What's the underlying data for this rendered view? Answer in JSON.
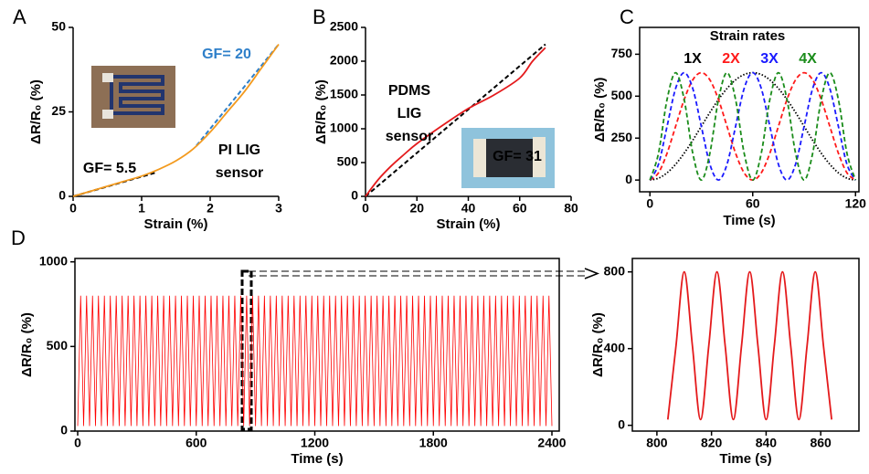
{
  "chart_data": [
    {
      "type": "line",
      "panel": "A",
      "xlabel": "Strain (%)",
      "ylabel": "ΔR/R₀ (%)",
      "xlim": [
        0,
        3
      ],
      "ylim": [
        0,
        50
      ],
      "xticks": [
        0,
        1,
        2,
        3
      ],
      "yticks": [
        0,
        25,
        50
      ],
      "series": [
        {
          "color": "#f39a1e",
          "x": [
            0,
            0.25,
            0.5,
            0.75,
            1,
            1.25,
            1.5,
            1.75,
            2,
            2.25,
            2.5,
            2.75,
            3
          ],
          "values": [
            0,
            1.5,
            3,
            4.5,
            6,
            8,
            10.5,
            14,
            19,
            25,
            31,
            38,
            45
          ]
        }
      ],
      "fits": [
        {
          "color": "#000000",
          "x": [
            0,
            1.2
          ],
          "values": [
            0,
            7
          ]
        },
        {
          "color": "#2e7fc9",
          "x": [
            1.8,
            3
          ],
          "values": [
            15,
            45
          ]
        }
      ],
      "annotations": [
        {
          "text": "GF= 20",
          "color": "#2e7fc9"
        },
        {
          "text": "GF= 5.5",
          "color": "#000000"
        },
        {
          "text": "PI LIG",
          "color": "#000000"
        },
        {
          "text": "sensor",
          "color": "#000000"
        }
      ]
    },
    {
      "type": "line",
      "panel": "B",
      "xlabel": "Strain (%)",
      "ylabel": "ΔR/R₀ (%)",
      "xlim": [
        0,
        80
      ],
      "ylim": [
        0,
        2500
      ],
      "xticks": [
        0,
        20,
        40,
        60,
        80
      ],
      "yticks": [
        0,
        500,
        1000,
        1500,
        2000,
        2500
      ],
      "series": [
        {
          "color": "#e41a1c",
          "x": [
            0,
            5,
            10,
            15,
            20,
            30,
            40,
            50,
            60,
            65,
            70
          ],
          "values": [
            0,
            250,
            450,
            620,
            780,
            1050,
            1300,
            1500,
            1750,
            2000,
            2200
          ]
        }
      ],
      "fits": [
        {
          "color": "#000000",
          "x": [
            0,
            70
          ],
          "values": [
            0,
            2250
          ]
        }
      ],
      "annotations": [
        {
          "text": "PDMS",
          "color": "#000000"
        },
        {
          "text": "LIG",
          "color": "#000000"
        },
        {
          "text": "sensor",
          "color": "#000000"
        },
        {
          "text": "GF= 31",
          "color": "#000000"
        }
      ]
    },
    {
      "type": "line",
      "panel": "C",
      "xlabel": "Time (s)",
      "ylabel": "ΔR/R₀ (%)",
      "legend_title": "Strain rates",
      "xlim": [
        -6,
        122
      ],
      "ylim": [
        -70,
        910
      ],
      "xticks": [
        0,
        60,
        120
      ],
      "yticks": [
        0,
        250,
        500,
        750
      ],
      "x": [
        0,
        5,
        10,
        15,
        20,
        25,
        30,
        35,
        40,
        45,
        50,
        55,
        60,
        65,
        70,
        75,
        80,
        85,
        90,
        95,
        100,
        105,
        110,
        115,
        120
      ],
      "series": [
        {
          "name": "1X",
          "color": "#000000",
          "dash": "1.5,2",
          "values": [
            0,
            11,
            43,
            94,
            160,
            237,
            320,
            403,
            480,
            546,
            597,
            629,
            640,
            629,
            597,
            546,
            480,
            403,
            320,
            237,
            160,
            94,
            43,
            11,
            0
          ]
        },
        {
          "name": "2X",
          "color": "#ff1a1a",
          "dash": "5,3",
          "values": [
            0,
            43,
            160,
            320,
            480,
            597,
            640,
            597,
            480,
            320,
            160,
            43,
            0,
            43,
            160,
            320,
            480,
            597,
            640,
            597,
            480,
            320,
            160,
            43,
            0
          ]
        },
        {
          "name": "3X",
          "color": "#1a1aff",
          "dash": "5,3",
          "values": [
            0,
            94,
            320,
            546,
            640,
            546,
            320,
            94,
            0,
            94,
            320,
            546,
            640,
            546,
            320,
            94,
            0,
            94,
            320,
            546,
            640,
            546,
            320,
            94,
            0
          ]
        },
        {
          "name": "4X",
          "color": "#1a8c1a",
          "dash": "5,3",
          "values": [
            0,
            160,
            480,
            640,
            480,
            160,
            0,
            160,
            480,
            640,
            480,
            160,
            0,
            160,
            480,
            640,
            480,
            160,
            0,
            160,
            480,
            640,
            480,
            160,
            0
          ]
        }
      ]
    },
    {
      "type": "line",
      "panel": "D",
      "xlabel": "Time (s)",
      "ylabel": "ΔR/R₀ (%)",
      "xlim": [
        -14,
        2437
      ],
      "ylim": [
        0,
        1020
      ],
      "xticks": [
        0,
        600,
        1200,
        1800,
        2400
      ],
      "yticks": [
        0,
        500,
        1000
      ],
      "x": [
        0,
        15,
        30,
        45,
        60,
        75,
        90,
        105,
        120,
        135,
        150,
        165,
        180,
        195,
        210,
        225,
        240,
        255,
        270,
        285,
        300,
        315,
        330,
        345,
        360,
        375,
        390,
        405,
        420,
        435,
        450,
        465,
        480,
        495,
        510,
        525,
        540,
        555,
        570,
        585,
        600,
        615,
        630,
        645,
        660,
        675,
        690,
        705,
        720,
        735,
        750,
        765,
        780,
        795,
        810,
        825,
        840,
        855,
        870,
        885,
        900,
        915,
        930,
        945,
        960,
        975,
        990,
        1005,
        1020,
        1035,
        1050,
        1065,
        1080,
        1095,
        1110,
        1125,
        1140,
        1155,
        1170,
        1185,
        1200,
        1215,
        1230,
        1245,
        1260,
        1275,
        1290,
        1305,
        1320,
        1335,
        1350,
        1365,
        1380,
        1395,
        1410,
        1425,
        1440,
        1455,
        1470,
        1485,
        1500,
        1515,
        1530,
        1545,
        1560,
        1575,
        1590,
        1605,
        1620,
        1635,
        1650,
        1665,
        1680,
        1695,
        1710,
        1725,
        1740,
        1755,
        1770,
        1785,
        1800,
        1815,
        1830,
        1845,
        1860,
        1875,
        1890,
        1905,
        1920,
        1935,
        1950,
        1965,
        1980,
        1995,
        2010,
        2025,
        2040,
        2055,
        2070,
        2085,
        2100,
        2115,
        2130,
        2145,
        2160,
        2175,
        2190,
        2205,
        2220,
        2235,
        2250,
        2265,
        2280,
        2295,
        2310,
        2325,
        2340,
        2355,
        2370,
        2385,
        2400
      ],
      "series": [
        {
          "color": "#ff0000",
          "values": [
            30,
            800,
            30,
            800,
            30,
            800,
            30,
            800,
            30,
            800,
            30,
            800,
            30,
            800,
            30,
            800,
            30,
            800,
            30,
            800,
            30,
            800,
            30,
            800,
            30,
            800,
            30,
            800,
            30,
            800,
            30,
            800,
            30,
            800,
            30,
            800,
            30,
            800,
            30,
            800,
            30,
            800,
            30,
            800,
            30,
            800,
            30,
            800,
            30,
            800,
            30,
            800,
            30,
            800,
            30,
            800,
            30,
            800,
            30,
            800,
            30,
            800,
            30,
            800,
            30,
            800,
            30,
            800,
            30,
            800,
            30,
            800,
            30,
            800,
            30,
            800,
            30,
            800,
            30,
            800,
            30,
            800,
            30,
            800,
            30,
            800,
            30,
            800,
            30,
            800,
            30,
            800,
            30,
            800,
            30,
            800,
            30,
            800,
            30,
            800,
            30,
            800,
            30,
            800,
            30,
            800,
            30,
            800,
            30,
            800,
            30,
            800,
            30,
            800,
            30,
            800,
            30,
            800,
            30,
            800,
            30,
            800,
            30,
            800,
            30,
            800,
            30,
            800,
            30,
            800,
            30,
            800,
            30,
            800,
            30,
            800,
            30,
            800,
            30,
            800,
            30,
            800,
            30,
            800,
            30,
            800,
            30,
            800,
            30,
            800,
            30,
            800,
            30,
            800,
            30,
            800,
            30,
            800,
            30,
            800,
            30
          ]
        }
      ]
    },
    {
      "type": "line",
      "xlabel": "Time (s)",
      "ylabel": "ΔR/R₀ (%)",
      "xlim": [
        791,
        874
      ],
      "ylim": [
        -30,
        870
      ],
      "xticks": [
        800,
        820,
        840,
        860
      ],
      "yticks": [
        0,
        400,
        800
      ],
      "x": [
        804,
        807,
        810,
        813,
        816,
        819,
        822,
        825,
        828,
        831,
        834,
        837,
        840,
        843,
        846,
        849,
        852,
        855,
        858,
        861,
        864
      ],
      "series": [
        {
          "color": "#e41a1c",
          "values": [
            30,
            415,
            800,
            415,
            30,
            415,
            800,
            415,
            30,
            415,
            800,
            415,
            30,
            415,
            800,
            415,
            30,
            415,
            800,
            415,
            30
          ]
        }
      ]
    }
  ]
}
